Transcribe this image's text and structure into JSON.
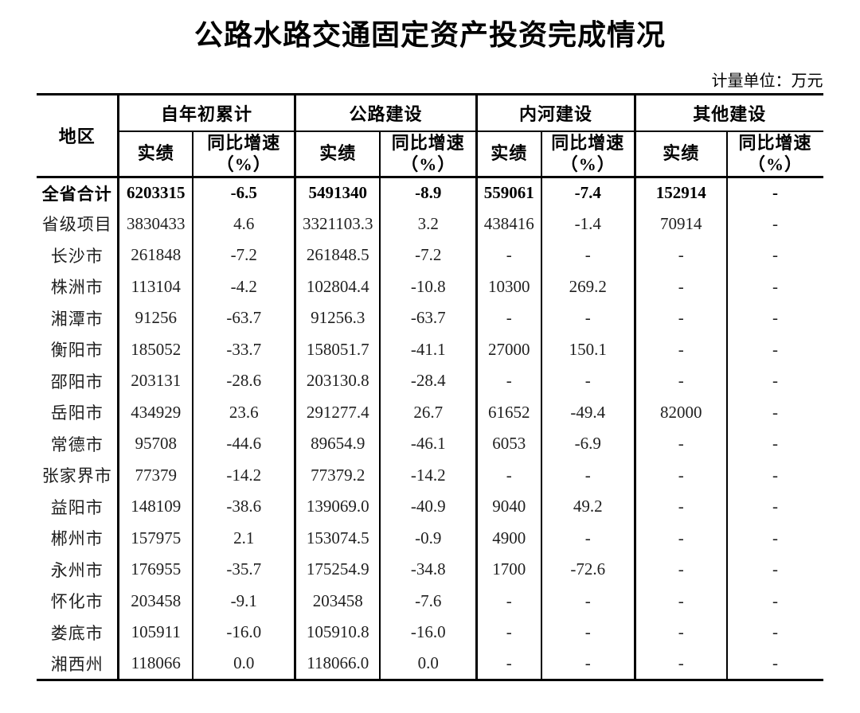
{
  "title": "公路水路交通固定资产投资完成情况",
  "unit_note": "计量单位：万元",
  "colors": {
    "background": "#ffffff",
    "text": "#000000",
    "data_text": "#1f1f1f",
    "border": "#000000"
  },
  "table": {
    "region_header": "地区",
    "groups": [
      {
        "label": "自年初累计"
      },
      {
        "label": "公路建设"
      },
      {
        "label": "内河建设"
      },
      {
        "label": "其他建设"
      }
    ],
    "sub_headers": {
      "actual": "实绩",
      "growth": "同比增速\n（%）"
    },
    "rows": [
      {
        "region": "全省合计",
        "emphasis": true,
        "values": [
          "6203315",
          "-6.5",
          "5491340",
          "-8.9",
          "559061",
          "-7.4",
          "152914",
          "-"
        ]
      },
      {
        "region": "省级项目",
        "emphasis": false,
        "values": [
          "3830433",
          "4.6",
          "3321103.3",
          "3.2",
          "438416",
          "-1.4",
          "70914",
          "-"
        ]
      },
      {
        "region": "长沙市",
        "emphasis": false,
        "values": [
          "261848",
          "-7.2",
          "261848.5",
          "-7.2",
          "-",
          "-",
          "-",
          "-"
        ]
      },
      {
        "region": "株洲市",
        "emphasis": false,
        "values": [
          "113104",
          "-4.2",
          "102804.4",
          "-10.8",
          "10300",
          "269.2",
          "-",
          "-"
        ]
      },
      {
        "region": "湘潭市",
        "emphasis": false,
        "values": [
          "91256",
          "-63.7",
          "91256.3",
          "-63.7",
          "-",
          "-",
          "-",
          "-"
        ]
      },
      {
        "region": "衡阳市",
        "emphasis": false,
        "values": [
          "185052",
          "-33.7",
          "158051.7",
          "-41.1",
          "27000",
          "150.1",
          "-",
          "-"
        ]
      },
      {
        "region": "邵阳市",
        "emphasis": false,
        "values": [
          "203131",
          "-28.6",
          "203130.8",
          "-28.4",
          "-",
          "-",
          "-",
          "-"
        ]
      },
      {
        "region": "岳阳市",
        "emphasis": false,
        "values": [
          "434929",
          "23.6",
          "291277.4",
          "26.7",
          "61652",
          "-49.4",
          "82000",
          "-"
        ]
      },
      {
        "region": "常德市",
        "emphasis": false,
        "values": [
          "95708",
          "-44.6",
          "89654.9",
          "-46.1",
          "6053",
          "-6.9",
          "-",
          "-"
        ]
      },
      {
        "region": "张家界市",
        "emphasis": false,
        "values": [
          "77379",
          "-14.2",
          "77379.2",
          "-14.2",
          "-",
          "-",
          "-",
          "-"
        ]
      },
      {
        "region": "益阳市",
        "emphasis": false,
        "values": [
          "148109",
          "-38.6",
          "139069.0",
          "-40.9",
          "9040",
          "49.2",
          "-",
          "-"
        ]
      },
      {
        "region": "郴州市",
        "emphasis": false,
        "values": [
          "157975",
          "2.1",
          "153074.5",
          "-0.9",
          "4900",
          "-",
          "-",
          "-"
        ]
      },
      {
        "region": "永州市",
        "emphasis": false,
        "values": [
          "176955",
          "-35.7",
          "175254.9",
          "-34.8",
          "1700",
          "-72.6",
          "-",
          "-"
        ]
      },
      {
        "region": "怀化市",
        "emphasis": false,
        "values": [
          "203458",
          "-9.1",
          "203458",
          "-7.6",
          "-",
          "-",
          "-",
          "-"
        ]
      },
      {
        "region": "娄底市",
        "emphasis": false,
        "values": [
          "105911",
          "-16.0",
          "105910.8",
          "-16.0",
          "-",
          "-",
          "-",
          "-"
        ]
      },
      {
        "region": "湘西州",
        "emphasis": false,
        "values": [
          "118066",
          "0.0",
          "118066.0",
          "0.0",
          "-",
          "-",
          "-",
          "-"
        ]
      }
    ]
  }
}
